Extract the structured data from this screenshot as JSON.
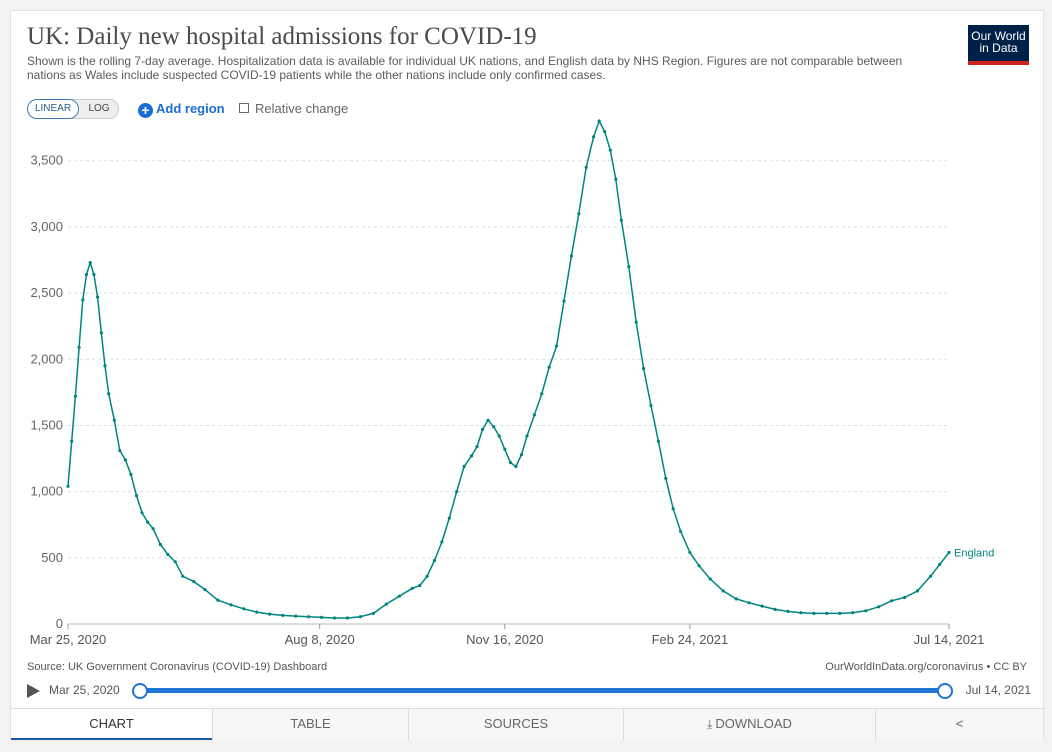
{
  "header": {
    "title": "UK: Daily new hospital admissions for COVID-19",
    "subtitle": "Shown is the rolling 7-day average. Hospitalization data is available for individual UK nations, and English data by NHS Region. Figures are not comparable between nations as Wales include suspected COVID-19 patients while the other nations include only confirmed cases.",
    "logo_line1": "Our World",
    "logo_line2": "in Data"
  },
  "controls": {
    "linear_label": "LINEAR",
    "log_label": "LOG",
    "add_region_label": "Add region",
    "relative_change_label": "Relative change"
  },
  "footer": {
    "source": "Source: UK Government Coronavirus (COVID-19) Dashboard",
    "url_license": "OurWorldInData.org/coronavirus • CC BY"
  },
  "timeline": {
    "start_label": "Mar 25, 2020",
    "end_label": "Jul 14, 2021"
  },
  "tabs": [
    {
      "label": "CHART",
      "icon": ""
    },
    {
      "label": "TABLE",
      "icon": ""
    },
    {
      "label": "SOURCES",
      "icon": ""
    },
    {
      "label": "DOWNLOAD",
      "icon": "download-icon"
    },
    {
      "label": "",
      "icon": "share-icon"
    }
  ],
  "colors": {
    "series": "#00847e",
    "accent": "#1f74d4",
    "logo_bg": "#002147",
    "logo_bar": "#ce261e"
  },
  "chart_data": {
    "type": "line",
    "title": "UK: Daily new hospital admissions for COVID-19",
    "xlabel": "",
    "ylabel": "",
    "ylim": [
      0,
      3800
    ],
    "yticks": [
      0,
      500,
      1000,
      1500,
      2000,
      2500,
      3000,
      3500
    ],
    "xlim": [
      "2020-03-25",
      "2021-07-14"
    ],
    "xticks": [
      {
        "date": "2020-03-25",
        "label": "Mar 25, 2020"
      },
      {
        "date": "2020-08-08",
        "label": "Aug 8, 2020"
      },
      {
        "date": "2020-11-16",
        "label": "Nov 16, 2020"
      },
      {
        "date": "2021-02-24",
        "label": "Feb 24, 2021"
      },
      {
        "date": "2021-07-14",
        "label": "Jul 14, 2021"
      }
    ],
    "grid": "horizontal-dashed",
    "legend": "end-of-line label",
    "series": [
      {
        "name": "England",
        "points": [
          [
            "2020-03-25",
            1040
          ],
          [
            "2020-03-27",
            1380
          ],
          [
            "2020-03-29",
            1720
          ],
          [
            "2020-03-31",
            2090
          ],
          [
            "2020-04-02",
            2450
          ],
          [
            "2020-04-04",
            2640
          ],
          [
            "2020-04-06",
            2730
          ],
          [
            "2020-04-08",
            2640
          ],
          [
            "2020-04-10",
            2470
          ],
          [
            "2020-04-12",
            2200
          ],
          [
            "2020-04-14",
            1950
          ],
          [
            "2020-04-16",
            1740
          ],
          [
            "2020-04-19",
            1540
          ],
          [
            "2020-04-22",
            1310
          ],
          [
            "2020-04-25",
            1240
          ],
          [
            "2020-04-28",
            1130
          ],
          [
            "2020-05-01",
            970
          ],
          [
            "2020-05-04",
            840
          ],
          [
            "2020-05-07",
            770
          ],
          [
            "2020-05-10",
            720
          ],
          [
            "2020-05-14",
            600
          ],
          [
            "2020-05-18",
            525
          ],
          [
            "2020-05-22",
            470
          ],
          [
            "2020-05-26",
            360
          ],
          [
            "2020-06-01",
            320
          ],
          [
            "2020-06-07",
            260
          ],
          [
            "2020-06-14",
            180
          ],
          [
            "2020-06-21",
            145
          ],
          [
            "2020-06-28",
            115
          ],
          [
            "2020-07-05",
            90
          ],
          [
            "2020-07-12",
            75
          ],
          [
            "2020-07-19",
            65
          ],
          [
            "2020-07-26",
            60
          ],
          [
            "2020-08-02",
            55
          ],
          [
            "2020-08-09",
            50
          ],
          [
            "2020-08-16",
            45
          ],
          [
            "2020-08-23",
            45
          ],
          [
            "2020-08-30",
            55
          ],
          [
            "2020-09-06",
            80
          ],
          [
            "2020-09-13",
            150
          ],
          [
            "2020-09-20",
            210
          ],
          [
            "2020-09-27",
            270
          ],
          [
            "2020-10-01",
            290
          ],
          [
            "2020-10-05",
            360
          ],
          [
            "2020-10-09",
            480
          ],
          [
            "2020-10-13",
            620
          ],
          [
            "2020-10-17",
            800
          ],
          [
            "2020-10-21",
            1000
          ],
          [
            "2020-10-25",
            1190
          ],
          [
            "2020-10-29",
            1270
          ],
          [
            "2020-11-01",
            1340
          ],
          [
            "2020-11-04",
            1470
          ],
          [
            "2020-11-07",
            1540
          ],
          [
            "2020-11-10",
            1490
          ],
          [
            "2020-11-13",
            1420
          ],
          [
            "2020-11-16",
            1320
          ],
          [
            "2020-11-19",
            1220
          ],
          [
            "2020-11-22",
            1190
          ],
          [
            "2020-11-25",
            1280
          ],
          [
            "2020-11-28",
            1420
          ],
          [
            "2020-12-02",
            1580
          ],
          [
            "2020-12-06",
            1740
          ],
          [
            "2020-12-10",
            1940
          ],
          [
            "2020-12-14",
            2100
          ],
          [
            "2020-12-18",
            2440
          ],
          [
            "2020-12-22",
            2780
          ],
          [
            "2020-12-26",
            3100
          ],
          [
            "2020-12-30",
            3450
          ],
          [
            "2021-01-03",
            3680
          ],
          [
            "2021-01-06",
            3800
          ],
          [
            "2021-01-09",
            3720
          ],
          [
            "2021-01-12",
            3580
          ],
          [
            "2021-01-15",
            3360
          ],
          [
            "2021-01-18",
            3050
          ],
          [
            "2021-01-22",
            2700
          ],
          [
            "2021-01-26",
            2280
          ],
          [
            "2021-01-30",
            1930
          ],
          [
            "2021-02-03",
            1650
          ],
          [
            "2021-02-07",
            1380
          ],
          [
            "2021-02-11",
            1100
          ],
          [
            "2021-02-15",
            870
          ],
          [
            "2021-02-19",
            700
          ],
          [
            "2021-02-24",
            540
          ],
          [
            "2021-03-01",
            440
          ],
          [
            "2021-03-07",
            340
          ],
          [
            "2021-03-14",
            250
          ],
          [
            "2021-03-21",
            190
          ],
          [
            "2021-03-28",
            160
          ],
          [
            "2021-04-04",
            135
          ],
          [
            "2021-04-11",
            110
          ],
          [
            "2021-04-18",
            95
          ],
          [
            "2021-04-25",
            85
          ],
          [
            "2021-05-02",
            80
          ],
          [
            "2021-05-09",
            80
          ],
          [
            "2021-05-16",
            80
          ],
          [
            "2021-05-23",
            85
          ],
          [
            "2021-05-30",
            100
          ],
          [
            "2021-06-06",
            130
          ],
          [
            "2021-06-13",
            175
          ],
          [
            "2021-06-20",
            200
          ],
          [
            "2021-06-27",
            250
          ],
          [
            "2021-07-04",
            360
          ],
          [
            "2021-07-09",
            450
          ],
          [
            "2021-07-14",
            540
          ]
        ]
      }
    ]
  }
}
